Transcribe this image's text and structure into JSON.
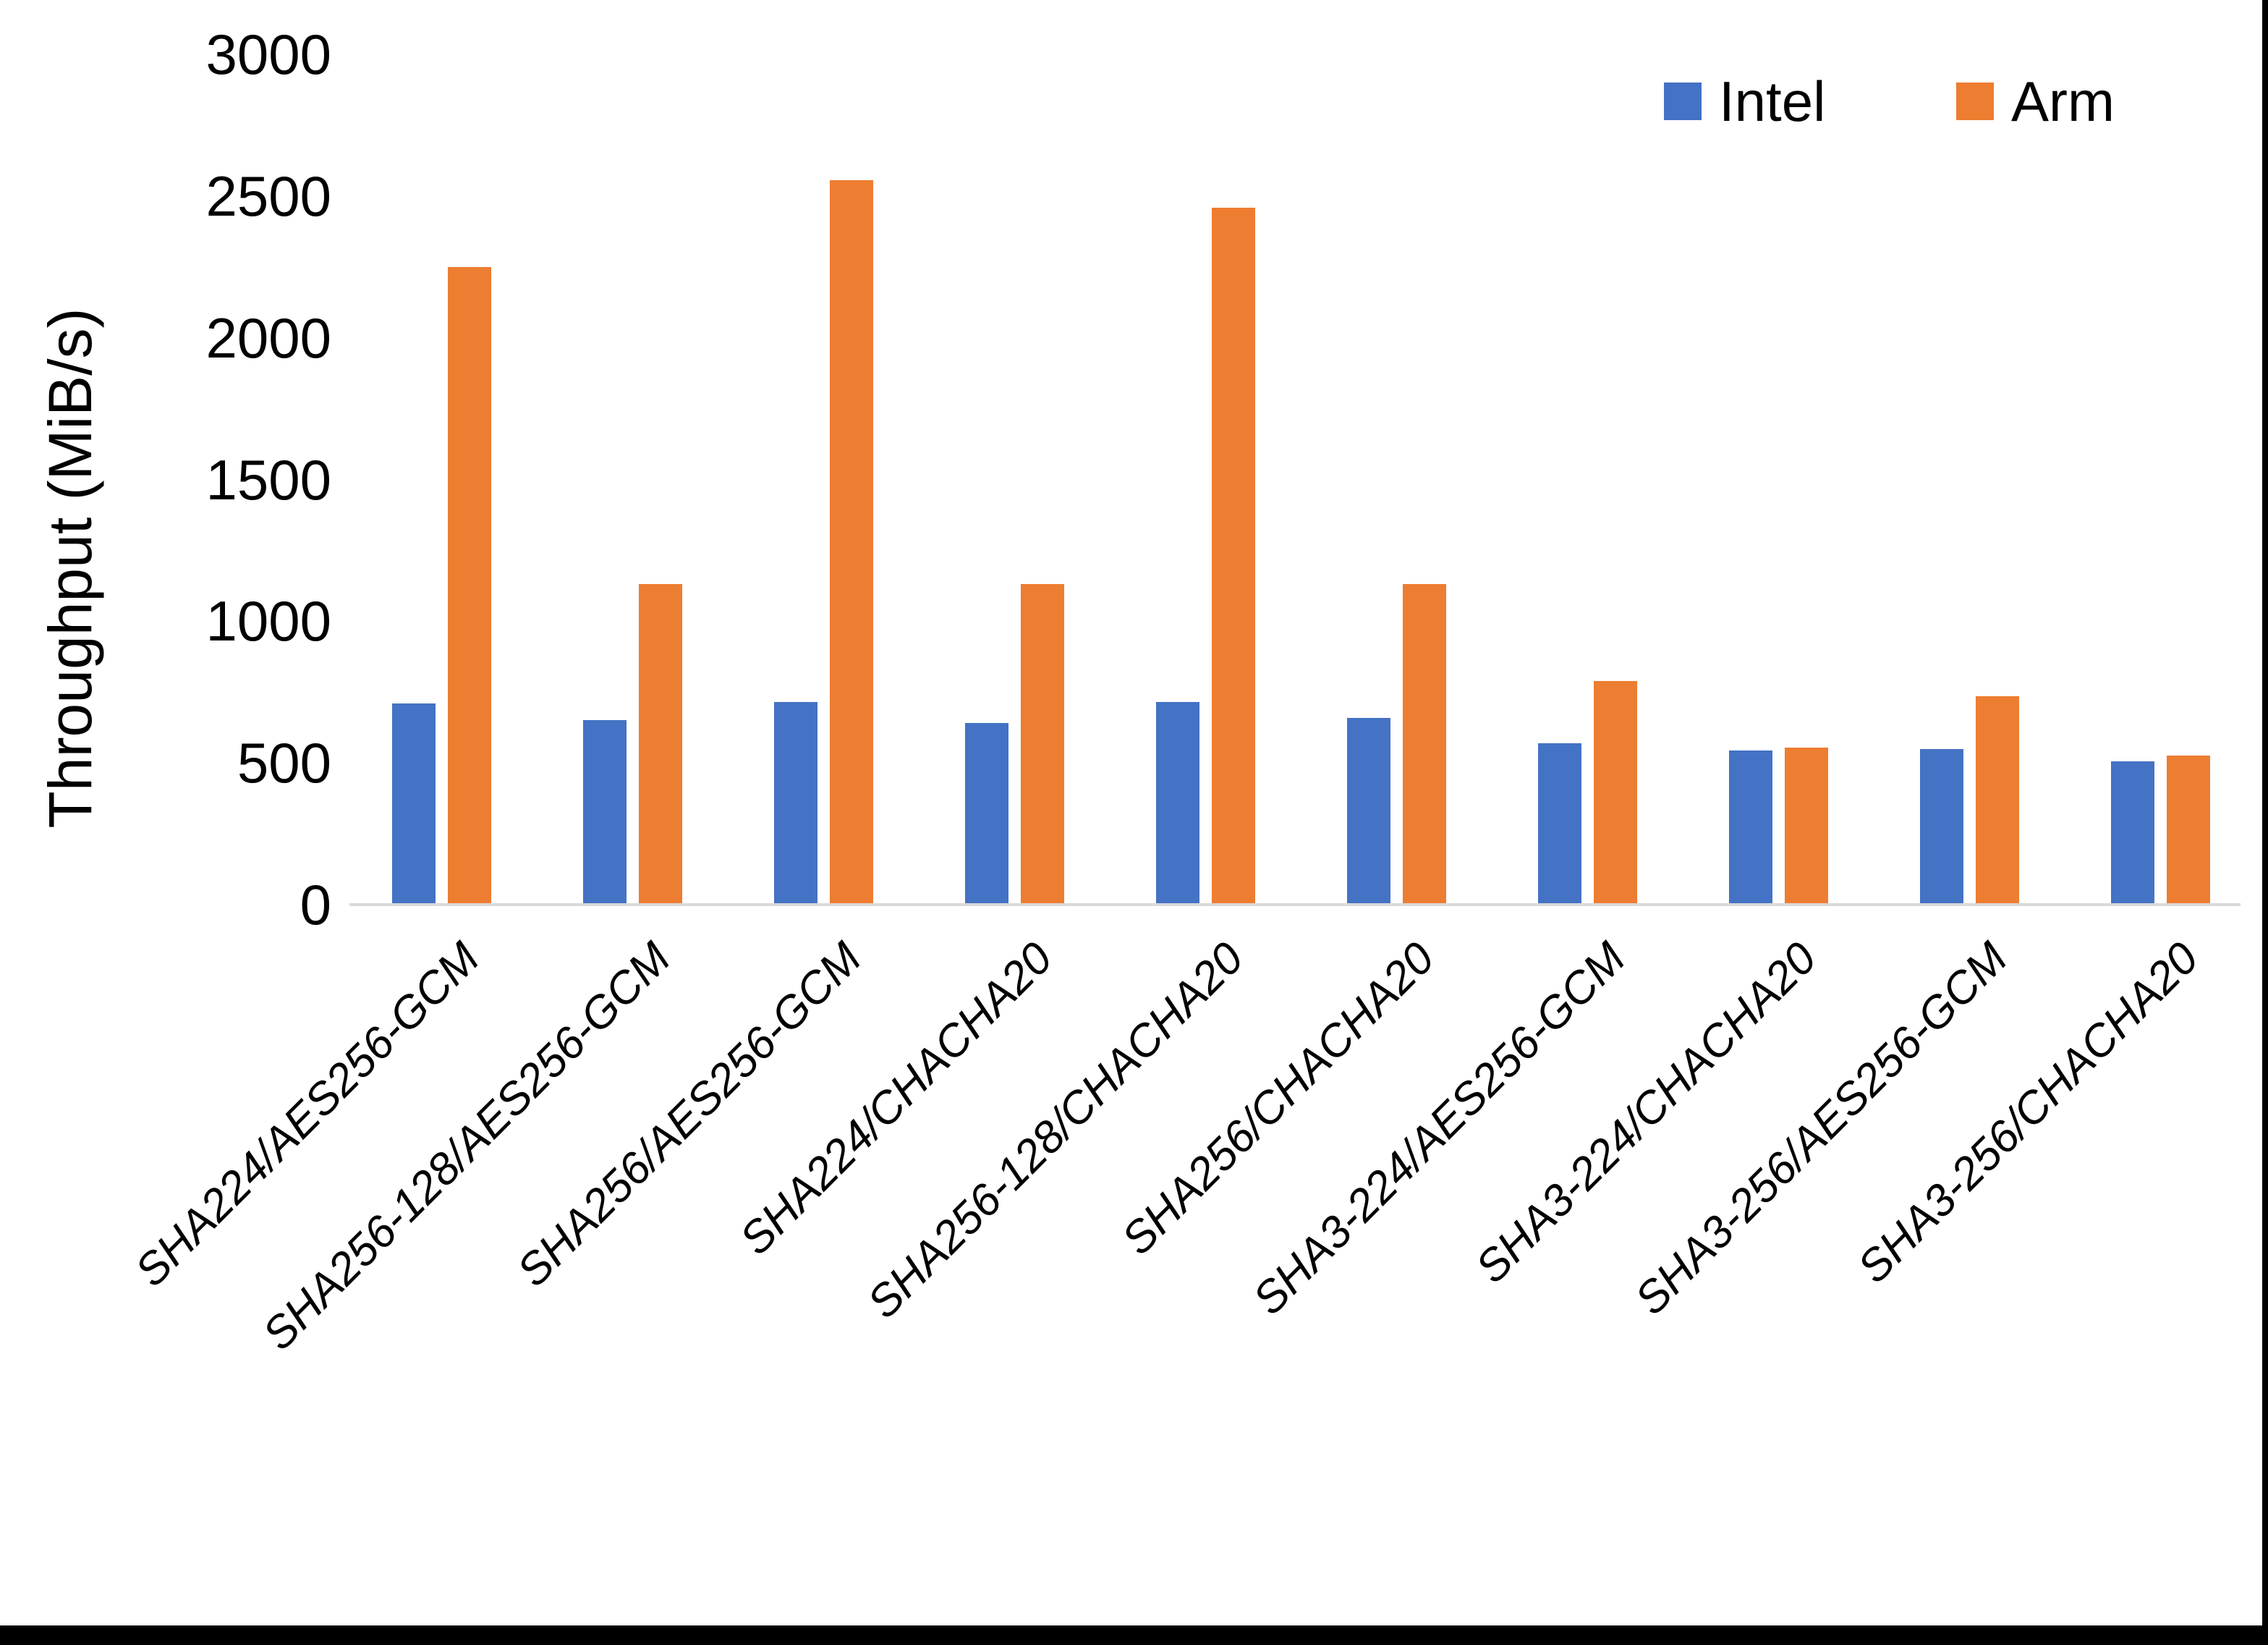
{
  "frame": {
    "background": "#ffffff",
    "right_border_color": "#000000",
    "bottom_bar_color": "#000000"
  },
  "chart_data": {
    "type": "bar",
    "title": "",
    "xlabel": "",
    "ylabel": "Throughput (MiB/s)",
    "ylim": [
      0,
      3000
    ],
    "ytick_step": 500,
    "yticks": [
      "0",
      "500",
      "1000",
      "1500",
      "2000",
      "2500",
      "3000"
    ],
    "grid": false,
    "legend_position": "top-right",
    "axis_line_color": "#D9D9D9",
    "text_color": "#000000",
    "categories": [
      "SHA224/AES256-GCM",
      "SHA256-128/AES256-GCM",
      "SHA256/AES256-GCM",
      "SHA224/CHACHA20",
      "SHA256-128/CHACHA20",
      "SHA256/CHACHA20",
      "SHA3-224/AES256-GCM",
      "SHA3-224/CHACHA20",
      "SHA3-256/AES256-GCM",
      "SHA3-256/CHACHA20"
    ],
    "series": [
      {
        "name": "Intel",
        "color": "#4472C4",
        "values": [
          710,
          650,
          715,
          640,
          715,
          660,
          570,
          545,
          550,
          505
        ]
      },
      {
        "name": "Arm",
        "color": "#ED7D31",
        "values": [
          2250,
          1130,
          2555,
          1130,
          2460,
          1130,
          790,
          555,
          735,
          525
        ]
      }
    ]
  }
}
